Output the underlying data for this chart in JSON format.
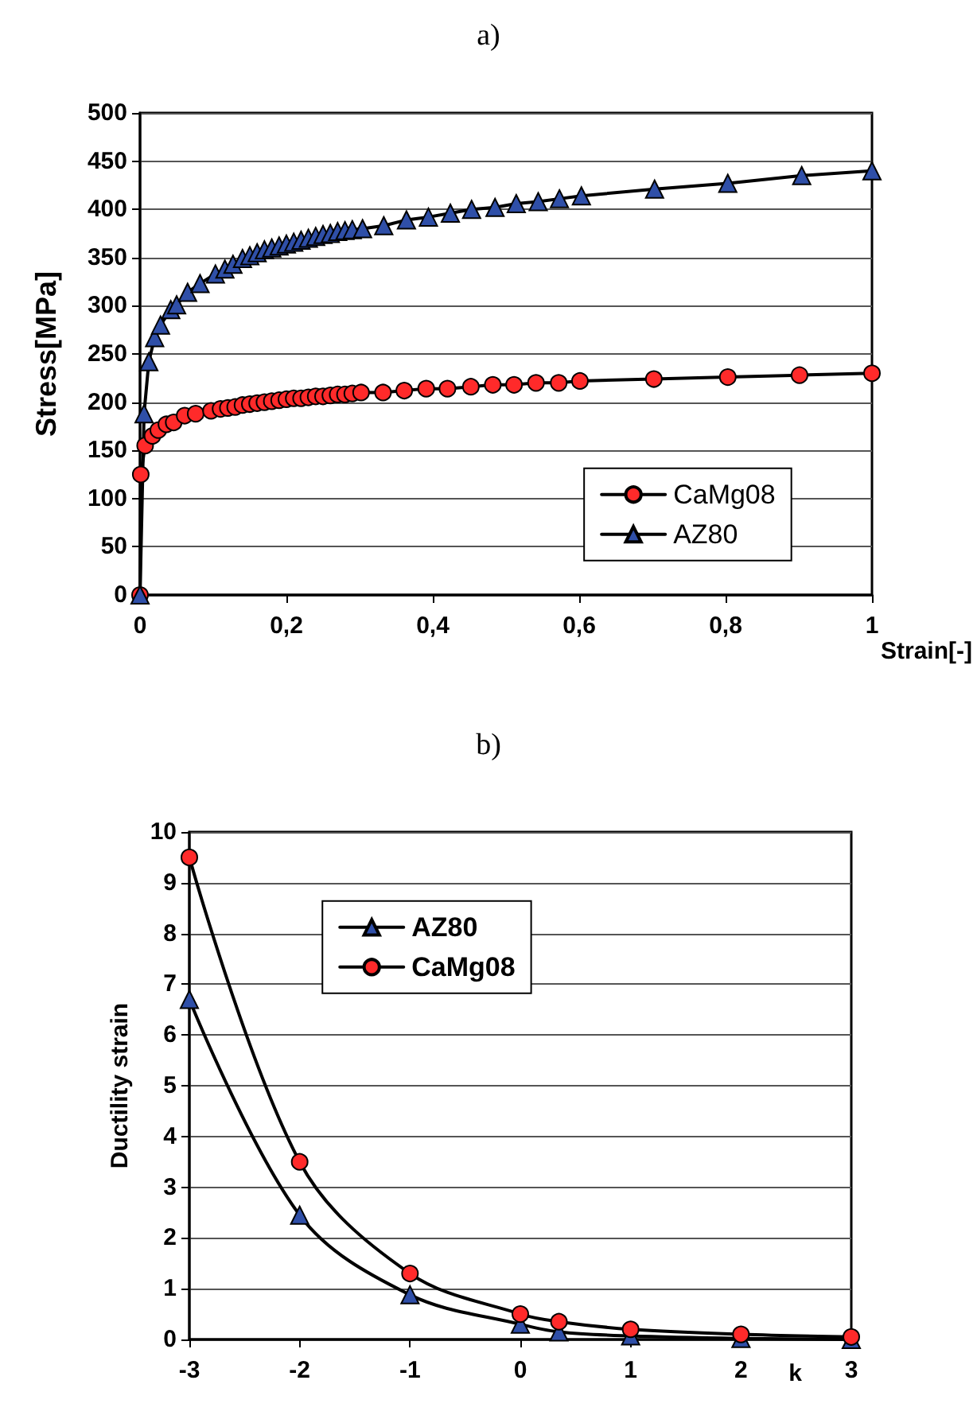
{
  "chart_data": [
    {
      "type": "line",
      "title": "a)",
      "xlabel": "Strain[-]",
      "ylabel": "Stress[MPa]",
      "xlim": [
        0,
        1
      ],
      "xticks": [
        0,
        {
          "value": 0.2,
          "label": "0,2"
        },
        {
          "value": 0.4,
          "label": "0,4"
        },
        {
          "value": 0.6,
          "label": "0,6"
        },
        {
          "value": 0.8,
          "label": "0,8"
        },
        1
      ],
      "ylim": [
        0,
        500
      ],
      "yticks": [
        0,
        50,
        100,
        150,
        200,
        250,
        300,
        350,
        400,
        450,
        500
      ],
      "grid": "y",
      "legend": "bottom right",
      "line_style": "solid",
      "series": [
        {
          "name": "CaMg08",
          "color": "#ff2a2a",
          "marker": "circle",
          "x": [
            0,
            0.001,
            0.007,
            0.017,
            0.025,
            0.036,
            0.046,
            0.061,
            0.076,
            0.097,
            0.11,
            0.12,
            0.13,
            0.14,
            0.15,
            0.16,
            0.17,
            0.18,
            0.19,
            0.2,
            0.21,
            0.22,
            0.23,
            0.24,
            0.25,
            0.26,
            0.27,
            0.28,
            0.29,
            0.302,
            0.332,
            0.361,
            0.391,
            0.42,
            0.452,
            0.482,
            0.511,
            0.541,
            0.572,
            0.601,
            0.702,
            0.803,
            0.901,
            1.0
          ],
          "values": [
            0,
            125,
            155,
            165,
            171,
            177,
            179,
            186,
            188,
            191,
            193,
            194,
            195,
            197,
            198,
            199,
            200,
            201,
            202,
            203,
            204,
            204,
            205,
            206,
            206,
            207,
            208,
            208,
            209,
            210,
            210,
            212,
            214,
            214,
            216,
            218,
            218,
            220,
            220,
            222,
            224,
            226,
            228,
            230
          ]
        },
        {
          "name": "AZ80",
          "color": "#2f4fa8",
          "marker": "triangle",
          "x": [
            0,
            0.0055,
            0.012,
            0.02,
            0.028,
            0.042,
            0.05,
            0.065,
            0.082,
            0.103,
            0.116,
            0.127,
            0.14,
            0.15,
            0.16,
            0.17,
            0.18,
            0.19,
            0.2,
            0.21,
            0.22,
            0.23,
            0.24,
            0.25,
            0.26,
            0.27,
            0.28,
            0.29,
            0.304,
            0.333,
            0.364,
            0.394,
            0.424,
            0.453,
            0.485,
            0.514,
            0.544,
            0.573,
            0.603,
            0.703,
            0.803,
            0.904,
            1.0
          ],
          "values": [
            0,
            188,
            242,
            267,
            280,
            296,
            301,
            314,
            323,
            333,
            338,
            343,
            349,
            352,
            355,
            358,
            360,
            362,
            364,
            366,
            368,
            370,
            372,
            374,
            375,
            377,
            378,
            379,
            380,
            383,
            389,
            392,
            396,
            400,
            402,
            406,
            408,
            411,
            414,
            421,
            427,
            435,
            440
          ]
        }
      ]
    },
    {
      "type": "line",
      "title": "b)",
      "xlabel": "k",
      "ylabel": "Ductility strain",
      "xlim": [
        -3,
        3
      ],
      "xticks": [
        -3,
        -2,
        -1,
        0,
        1,
        2,
        3
      ],
      "ylim": [
        0,
        10
      ],
      "yticks": [
        0,
        1,
        2,
        3,
        4,
        5,
        6,
        7,
        8,
        9,
        10
      ],
      "grid": "y",
      "legend": "top left",
      "line_style": "solid",
      "series": [
        {
          "name": "AZ80",
          "color": "#2f4fa8",
          "marker": "triangle",
          "x": [
            -3,
            -2,
            -1,
            0,
            0.35,
            1,
            2,
            3
          ],
          "values": [
            6.7,
            2.45,
            0.88,
            0.3,
            0.15,
            0.07,
            0.02,
            0
          ]
        },
        {
          "name": "CaMg08",
          "color": "#ff2a2a",
          "marker": "circle",
          "x": [
            -3,
            -2,
            -1,
            0,
            0.35,
            1,
            2,
            3
          ],
          "values": [
            9.5,
            3.5,
            1.3,
            0.5,
            0.35,
            0.2,
            0.1,
            0.05
          ]
        }
      ]
    }
  ]
}
